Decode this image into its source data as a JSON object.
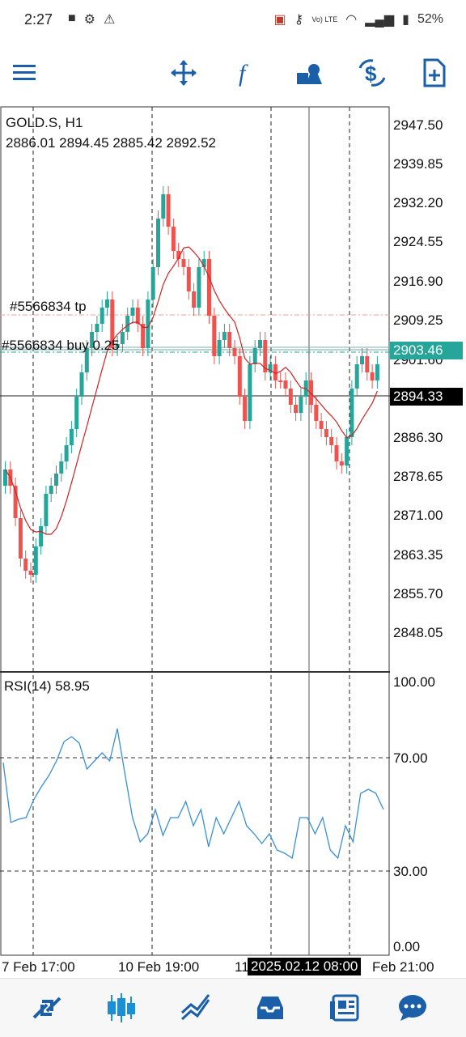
{
  "status_bar": {
    "time": "2:27",
    "battery": "52%",
    "volte": "Vo) LTE"
  },
  "chart": {
    "symbol_timeframe": "GOLD.S, H1",
    "ohlc": "2886.01 2894.45 2885.42 2892.52",
    "price_levels": [
      "2947.50",
      "2939.85",
      "2932.20",
      "2924.55",
      "2916.90",
      "2909.25",
      "2901.60",
      "2886.30",
      "2878.65",
      "2871.00",
      "2863.35",
      "2855.70",
      "2848.05"
    ],
    "current_price": "2903.46",
    "cursor_price": "2894.33",
    "tp_label": "#5566834 tp",
    "buy_label": "#5566834 buy 0.25",
    "colors": {
      "bull": "#26a69a",
      "bear": "#ef5350",
      "ma": "#cc2222",
      "rsi": "#3a8fd6",
      "current_price_bg": "#26a69a"
    }
  },
  "rsi": {
    "label": "RSI(14) 58.95",
    "levels": [
      "100.00",
      "70.00",
      "30.00",
      "0.00"
    ]
  },
  "time_axis": {
    "labels": [
      "7 Feb 17:00",
      "10 Feb 19:00",
      "11",
      "Feb 21:00"
    ],
    "cursor_time": "2025.02.12 08:00"
  },
  "toolbar": {
    "icons": [
      "menu-icon",
      "crosshair-icon",
      "indicators-icon",
      "objects-icon",
      "symbol-change-icon",
      "templates-icon"
    ]
  },
  "bottom_nav": {
    "icons": [
      "quotes-icon",
      "chart-icon",
      "trade-icon",
      "history-icon",
      "news-icon",
      "messages-icon"
    ]
  }
}
